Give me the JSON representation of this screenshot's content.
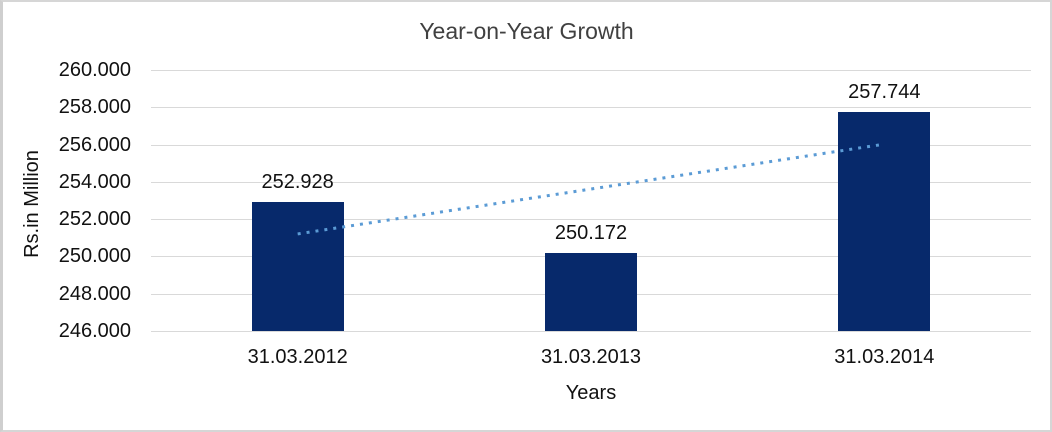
{
  "chart_data": {
    "type": "bar",
    "title": "Year-on-Year Growth",
    "xlabel": "Years",
    "ylabel": "Rs.in Million",
    "categories": [
      "31.03.2012",
      "31.03.2013",
      "31.03.2014"
    ],
    "values": [
      252.928,
      250.172,
      257.744
    ],
    "data_labels": [
      "252.928",
      "250.172",
      "257.744"
    ],
    "ylim": [
      246,
      260
    ],
    "ytick_step": 2,
    "ytick_labels": [
      "260.000",
      "258.000",
      "256.000",
      "254.000",
      "252.000",
      "250.000",
      "248.000",
      "246.000"
    ],
    "grid": true,
    "legend": false,
    "trendline": {
      "type": "linear",
      "style": "dotted",
      "start_value": 251.207,
      "end_value": 256.023
    },
    "colors": {
      "bar_fill": "#07296B",
      "trendline": "#5B9BD5",
      "gridline": "#D9D9D9",
      "text": "#111111",
      "title_text": "#404040",
      "frame_border": "#D6D6D6",
      "background": "#FFFFFF"
    }
  }
}
